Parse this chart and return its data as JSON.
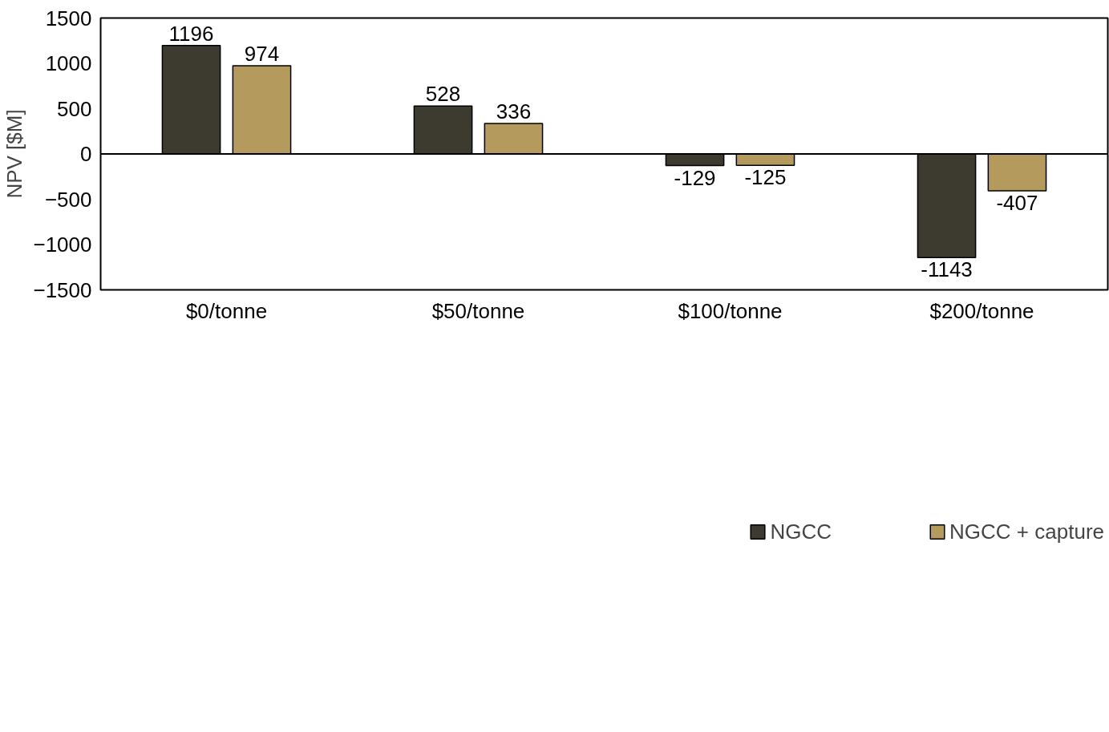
{
  "chart_data": {
    "type": "bar",
    "ylabel": "NPV [$M]",
    "categories": [
      "$0/tonne",
      "$50/tonne",
      "$100/tonne",
      "$200/tonne"
    ],
    "series": [
      {
        "name": "NGCC",
        "color": "#3d3b2f",
        "values": [
          1196,
          528,
          -129,
          -1143
        ]
      },
      {
        "name": "NGCC + capture",
        "color": "#b59a5e",
        "values": [
          974,
          336,
          -125,
          -407
        ]
      }
    ],
    "ylim": [
      -1500,
      1500
    ],
    "yticks": [
      -1500,
      -1000,
      -500,
      0,
      500,
      1000,
      1500
    ],
    "grid": false,
    "legend": "bottom",
    "data_labels": true,
    "ref_lines": [
      {
        "axis": "y",
        "value": 0
      }
    ]
  }
}
